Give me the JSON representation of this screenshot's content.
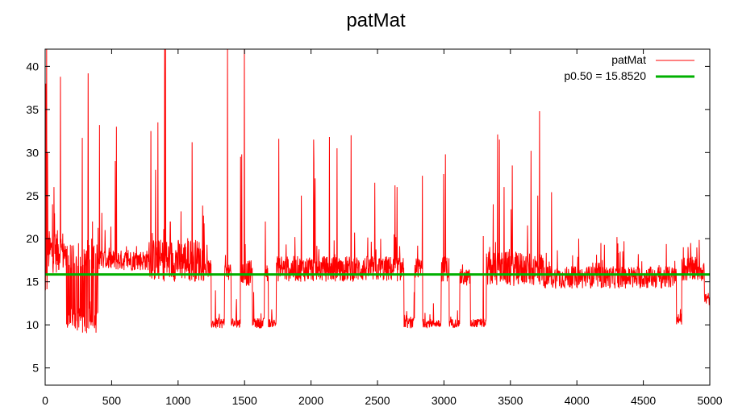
{
  "chart_data": {
    "type": "line",
    "title": "patMat",
    "xlabel": "",
    "ylabel": "",
    "xlim": [
      0,
      5000
    ],
    "ylim": [
      3,
      42
    ],
    "x_ticks": [
      0,
      500,
      1000,
      1500,
      2000,
      2500,
      3000,
      3500,
      4000,
      4500,
      5000
    ],
    "y_ticks": [
      5,
      10,
      15,
      20,
      25,
      30,
      35,
      40
    ],
    "grid": false,
    "legend_position": "top-right",
    "series": [
      {
        "name": "patMat",
        "color": "#ff0000",
        "kind": "noisy-line",
        "segments": [
          {
            "x": [
              0,
              20
            ],
            "base": 15,
            "spread": 1.5,
            "spikes": [
              42,
              38,
              35,
              30
            ]
          },
          {
            "x": [
              20,
              150
            ],
            "base": 18.5,
            "spread": 2.5,
            "spikes": [
              38.8,
              26,
              24,
              22
            ]
          },
          {
            "x": [
              150,
              400
            ],
            "base": 10.5,
            "alt": 18,
            "spread": 1.5,
            "spikes": [
              39.2,
              31.7,
              22,
              20
            ]
          },
          {
            "x": [
              400,
              780
            ],
            "base": 17.5,
            "spread": 1.2,
            "spikes": [
              33.2,
              33,
              29,
              23,
              21
            ]
          },
          {
            "x": [
              780,
              1200
            ],
            "base": 17.5,
            "spread": 2.5,
            "spikes": [
              42,
              42,
              33.5,
              32.5,
              31.2,
              28
            ]
          },
          {
            "x": [
              1200,
              1250
            ],
            "base": 16.5,
            "spread": 1,
            "spikes": []
          },
          {
            "x": [
              1250,
              1350
            ],
            "base": 10.2,
            "spread": 0.6,
            "spikes": [
              14
            ]
          },
          {
            "x": [
              1350,
              1400
            ],
            "base": 16,
            "spread": 1,
            "spikes": [
              42
            ]
          },
          {
            "x": [
              1400,
              1470
            ],
            "base": 10.2,
            "spread": 0.6,
            "spikes": [
              13
            ]
          },
          {
            "x": [
              1470,
              1560
            ],
            "base": 16,
            "spread": 1.5,
            "spikes": [
              42,
              29.8,
              29.5
            ]
          },
          {
            "x": [
              1560,
              1650
            ],
            "base": 10.2,
            "spread": 0.6,
            "spikes": [
              13.8
            ]
          },
          {
            "x": [
              1650,
              1680
            ],
            "base": 16,
            "spread": 1,
            "spikes": [
              22
            ]
          },
          {
            "x": [
              1680,
              1740
            ],
            "base": 10.2,
            "spread": 0.5,
            "spikes": []
          },
          {
            "x": [
              1740,
              2700
            ],
            "base": 16.5,
            "spread": 1.5,
            "spikes": [
              32,
              31.8,
              31.6,
              31.5,
              30.5,
              28.8,
              27,
              26.5,
              26.2,
              26,
              25,
              24
            ]
          },
          {
            "x": [
              2700,
              2780
            ],
            "base": 10.2,
            "spread": 0.6,
            "spikes": [
              13.8
            ]
          },
          {
            "x": [
              2780,
              2840
            ],
            "base": 16.5,
            "spread": 1.2,
            "spikes": [
              27.3
            ]
          },
          {
            "x": [
              2840,
              2980
            ],
            "base": 10.2,
            "spread": 0.5,
            "spikes": [
              12.5
            ]
          },
          {
            "x": [
              2980,
              3040
            ],
            "base": 16.5,
            "spread": 1.5,
            "spikes": [
              29.8,
              27.5
            ]
          },
          {
            "x": [
              3040,
              3120
            ],
            "base": 10.2,
            "spread": 0.5,
            "spikes": []
          },
          {
            "x": [
              3120,
              3200
            ],
            "base": 15.5,
            "spread": 1,
            "spikes": [
              17
            ]
          },
          {
            "x": [
              3200,
              3320
            ],
            "base": 10.2,
            "spread": 0.5,
            "spikes": [
              20.3
            ]
          },
          {
            "x": [
              3320,
              3750
            ],
            "base": 16.5,
            "spread": 2,
            "spikes": [
              34.8,
              32.1,
              31.5,
              30.2,
              28.5,
              26,
              25,
              24
            ]
          },
          {
            "x": [
              3750,
              4750
            ],
            "base": 15.5,
            "spread": 1.3,
            "spikes": [
              25.4,
              20.2,
              20,
              19.7,
              19.5,
              19.3
            ]
          },
          {
            "x": [
              4750,
              4790
            ],
            "base": 10.5,
            "spread": 0.5,
            "spikes": []
          },
          {
            "x": [
              4790,
              4960
            ],
            "base": 16.5,
            "spread": 1.5,
            "spikes": [
              19.5,
              19
            ]
          },
          {
            "x": [
              4960,
              5000
            ],
            "base": 13,
            "spread": 0.8,
            "spikes": []
          }
        ]
      },
      {
        "name": "p0.50 = 15.8520",
        "color": "#00b000",
        "kind": "constant",
        "value": 15.852
      }
    ]
  }
}
